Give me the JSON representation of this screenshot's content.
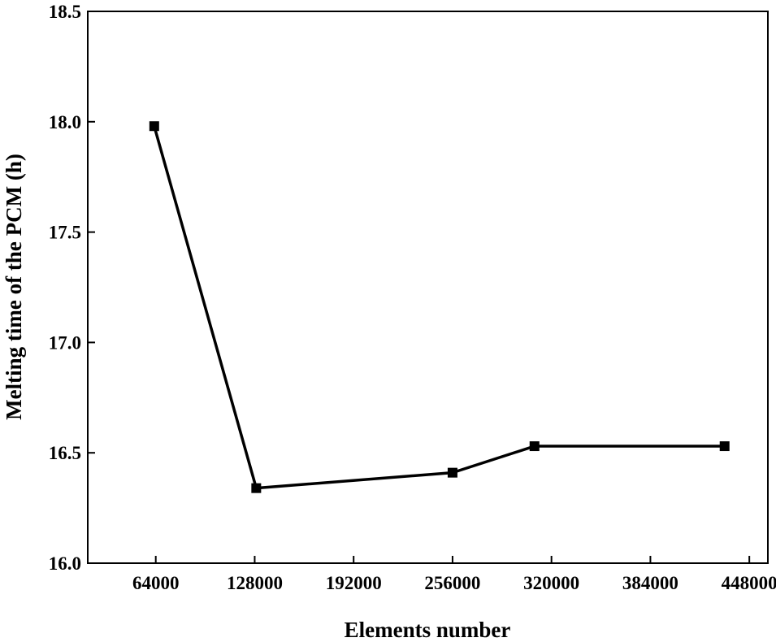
{
  "chart_data": {
    "type": "line",
    "title": "",
    "xlabel": "Elements number",
    "ylabel": "Melting time of the PCM (h)",
    "xlim": [
      20000,
      460000
    ],
    "ylim": [
      16.0,
      18.5
    ],
    "xticks": [
      64000,
      128000,
      192000,
      256000,
      320000,
      384000,
      448000
    ],
    "xtick_labels": [
      "64000",
      "128000",
      "192000",
      "256000",
      "320000",
      "384000",
      "448000"
    ],
    "yticks": [
      16.0,
      16.5,
      17.0,
      17.5,
      18.0,
      18.5
    ],
    "ytick_labels": [
      "16.0",
      "16.5",
      "17.0",
      "17.5",
      "18.0",
      "18.5"
    ],
    "grid": false,
    "legend": "none",
    "series": [
      {
        "marker": "square",
        "color": "#000000",
        "x": [
          63000,
          129000,
          256000,
          309000,
          432000
        ],
        "y": [
          17.98,
          16.34,
          16.41,
          16.53,
          16.53
        ]
      }
    ]
  }
}
